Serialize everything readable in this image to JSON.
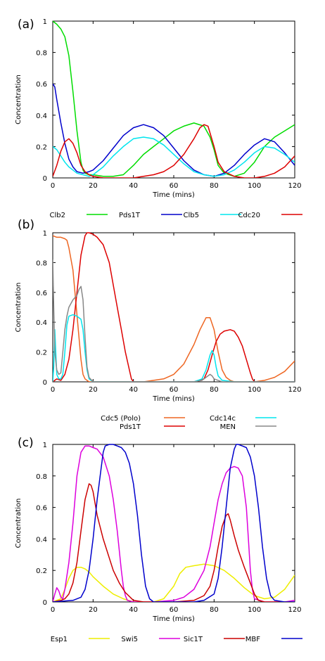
{
  "chart_data": [
    {
      "type": "line",
      "panel_label": "(a)",
      "xlabel": "Time (mins)",
      "ylabel": "Concentration",
      "xlim": [
        0,
        120
      ],
      "ylim": [
        0,
        1
      ],
      "xticks": [
        0,
        20,
        40,
        60,
        80,
        100,
        120
      ],
      "yticks": [
        0,
        0.2,
        0.4,
        0.6,
        0.8,
        1
      ],
      "ytick_labels": [
        "0",
        "0.2",
        "0.4",
        "0.6",
        "0.8",
        "1"
      ],
      "legend_placement": "bottom",
      "legend_rows": [
        [
          "Clb2",
          "Pds1T",
          "Clb5",
          "Cdc20"
        ]
      ],
      "series": [
        {
          "name": "Clb2",
          "color": "#00dd00",
          "x": [
            0,
            2,
            4,
            6,
            8,
            10,
            12,
            14,
            15,
            16,
            18,
            20,
            25,
            30,
            35,
            40,
            45,
            50,
            55,
            60,
            65,
            70,
            75,
            78,
            80,
            82,
            85,
            90,
            95,
            100,
            105,
            110,
            115,
            120
          ],
          "y": [
            1,
            0.98,
            0.95,
            0.9,
            0.78,
            0.55,
            0.3,
            0.1,
            0.05,
            0.03,
            0.02,
            0.02,
            0.01,
            0.01,
            0.02,
            0.08,
            0.15,
            0.2,
            0.25,
            0.3,
            0.33,
            0.35,
            0.33,
            0.26,
            0.18,
            0.08,
            0.03,
            0.01,
            0.03,
            0.1,
            0.2,
            0.26,
            0.3,
            0.34
          ]
        },
        {
          "name": "Pds1T",
          "color": "#0000cc",
          "x": [
            0,
            1,
            2,
            4,
            6,
            8,
            10,
            12,
            15,
            18,
            20,
            25,
            30,
            35,
            40,
            45,
            50,
            55,
            60,
            65,
            70,
            75,
            80,
            85,
            90,
            95,
            100,
            105,
            110,
            115,
            120
          ],
          "y": [
            0.6,
            0.58,
            0.5,
            0.35,
            0.22,
            0.12,
            0.07,
            0.04,
            0.03,
            0.04,
            0.05,
            0.11,
            0.19,
            0.27,
            0.32,
            0.34,
            0.32,
            0.27,
            0.19,
            0.11,
            0.05,
            0.02,
            0.01,
            0.03,
            0.08,
            0.15,
            0.21,
            0.25,
            0.23,
            0.16,
            0.08
          ]
        },
        {
          "name": "Clb5",
          "color": "#00e5ee",
          "x": [
            0,
            2,
            4,
            6,
            8,
            10,
            12,
            15,
            18,
            20,
            25,
            30,
            35,
            40,
            45,
            50,
            55,
            60,
            65,
            70,
            75,
            80,
            85,
            90,
            95,
            100,
            105,
            110,
            115,
            120
          ],
          "y": [
            0.2,
            0.18,
            0.14,
            0.1,
            0.07,
            0.05,
            0.03,
            0.02,
            0.01,
            0.02,
            0.07,
            0.14,
            0.2,
            0.25,
            0.26,
            0.25,
            0.21,
            0.15,
            0.09,
            0.04,
            0.02,
            0.01,
            0.02,
            0.05,
            0.1,
            0.16,
            0.2,
            0.19,
            0.15,
            0.1
          ]
        },
        {
          "name": "Cdc20",
          "color": "#dd0000",
          "x": [
            0,
            2,
            4,
            6,
            8,
            10,
            12,
            14,
            16,
            18,
            20,
            25,
            30,
            35,
            40,
            45,
            50,
            55,
            60,
            65,
            70,
            73,
            75,
            77,
            80,
            82,
            85,
            90,
            95,
            100,
            105,
            110,
            115,
            120
          ],
          "y": [
            0.01,
            0.08,
            0.17,
            0.23,
            0.25,
            0.22,
            0.16,
            0.08,
            0.04,
            0.02,
            0.01,
            0.0,
            0.0,
            0.0,
            0.0,
            0.01,
            0.02,
            0.04,
            0.08,
            0.15,
            0.25,
            0.32,
            0.34,
            0.33,
            0.2,
            0.1,
            0.04,
            0.01,
            0.0,
            0.0,
            0.01,
            0.03,
            0.07,
            0.14
          ]
        }
      ]
    },
    {
      "type": "line",
      "panel_label": "(b)",
      "xlabel": "Time (mins)",
      "ylabel": "Concentration",
      "xlim": [
        0,
        120
      ],
      "ylim": [
        0,
        1
      ],
      "xticks": [
        0,
        20,
        40,
        60,
        80,
        100,
        120
      ],
      "yticks": [
        0,
        0.2,
        0.4,
        0.6,
        0.8,
        1
      ],
      "ytick_labels": [
        "0",
        "0.2",
        "0.4",
        "0.6",
        "0.8",
        "1"
      ],
      "legend_placement": "bottom",
      "legend_rows": [
        [
          "Cdc5 (Polo)",
          "Cdc14c"
        ],
        [
          "Pds1T",
          "MEN"
        ]
      ],
      "series": [
        {
          "name": "Cdc5 (Polo)",
          "color": "#ee6622",
          "x": [
            0,
            2,
            4,
            6,
            7,
            8,
            10,
            12,
            14,
            15,
            16,
            18,
            20,
            25,
            30,
            35,
            40,
            45,
            50,
            55,
            60,
            65,
            70,
            73,
            76,
            78,
            80,
            82,
            84,
            86,
            88,
            90,
            95,
            100,
            105,
            110,
            115,
            120
          ],
          "y": [
            0.98,
            0.97,
            0.97,
            0.96,
            0.95,
            0.9,
            0.75,
            0.45,
            0.15,
            0.05,
            0.02,
            0.0,
            0.0,
            0.0,
            0.0,
            0.0,
            0.0,
            0.0,
            0.01,
            0.02,
            0.05,
            0.12,
            0.25,
            0.35,
            0.43,
            0.43,
            0.35,
            0.2,
            0.08,
            0.03,
            0.01,
            0.0,
            0.0,
            0.0,
            0.01,
            0.03,
            0.07,
            0.14
          ]
        },
        {
          "name": "Pds1T",
          "color": "#dd0000",
          "x": [
            0,
            1,
            2,
            4,
            6,
            8,
            10,
            12,
            14,
            16,
            17,
            18,
            20,
            22,
            25,
            28,
            30,
            32,
            34,
            36,
            38,
            39,
            40,
            45,
            50,
            60,
            70,
            75,
            77,
            79,
            81,
            83,
            85,
            88,
            90,
            92,
            94,
            96,
            98,
            99,
            100,
            105,
            110,
            115,
            120
          ],
          "y": [
            0.0,
            0.01,
            0.02,
            0.01,
            0.05,
            0.15,
            0.35,
            0.6,
            0.85,
            0.98,
            1.0,
            1.0,
            0.99,
            0.97,
            0.92,
            0.8,
            0.65,
            0.5,
            0.35,
            0.2,
            0.08,
            0.02,
            0.0,
            0.0,
            0.0,
            0.0,
            0.0,
            0.02,
            0.08,
            0.18,
            0.27,
            0.32,
            0.34,
            0.35,
            0.34,
            0.3,
            0.24,
            0.15,
            0.06,
            0.02,
            0.0,
            0.0,
            0.0,
            0.0,
            0.0
          ]
        },
        {
          "name": "Cdc14c",
          "color": "#00e5ee",
          "x": [
            0,
            0.5,
            1,
            1.5,
            2,
            3,
            4,
            5,
            6,
            7,
            8,
            10,
            12,
            14,
            15,
            16,
            17,
            18,
            20,
            25,
            30,
            40,
            60,
            70,
            74,
            76,
            78,
            79,
            80,
            81,
            82,
            84,
            90,
            100,
            120
          ],
          "y": [
            0.0,
            0.1,
            0.35,
            0.2,
            0.05,
            0.02,
            0.02,
            0.05,
            0.2,
            0.38,
            0.44,
            0.45,
            0.44,
            0.42,
            0.35,
            0.2,
            0.08,
            0.02,
            0.0,
            0.0,
            0.0,
            0.0,
            0.0,
            0.0,
            0.02,
            0.08,
            0.18,
            0.21,
            0.18,
            0.1,
            0.04,
            0.01,
            0.0,
            0.0,
            0.0
          ]
        },
        {
          "name": "MEN",
          "color": "#888888",
          "x": [
            0,
            0.5,
            1,
            2,
            3,
            4,
            5,
            6,
            7,
            8,
            10,
            12,
            13,
            14,
            15,
            16,
            17,
            18,
            20,
            25,
            30,
            40,
            60,
            70,
            74,
            76,
            77,
            78,
            79,
            80,
            82,
            84,
            90,
            100,
            120
          ],
          "y": [
            0.82,
            0.5,
            0.2,
            0.08,
            0.05,
            0.06,
            0.2,
            0.35,
            0.44,
            0.5,
            0.55,
            0.58,
            0.62,
            0.64,
            0.55,
            0.3,
            0.1,
            0.03,
            0.0,
            0.0,
            0.0,
            0.0,
            0.0,
            0.0,
            0.01,
            0.03,
            0.04,
            0.05,
            0.04,
            0.02,
            0.01,
            0.0,
            0.0,
            0.0,
            0.0
          ]
        }
      ]
    },
    {
      "type": "line",
      "panel_label": "(c)",
      "xlabel": "Time (mins)",
      "ylabel": "Concentration",
      "xlim": [
        0,
        120
      ],
      "ylim": [
        0,
        1
      ],
      "xticks": [
        0,
        20,
        40,
        60,
        80,
        100,
        120
      ],
      "yticks": [
        0,
        0.2,
        0.4,
        0.6,
        0.8,
        1
      ],
      "ytick_labels": [
        "0",
        "0.2",
        "0.4",
        "0.6",
        "0.8",
        "1"
      ],
      "legend_placement": "bottom",
      "legend_rows": [
        [
          "Esp1",
          "Swi5",
          "Sic1T",
          "MBF"
        ]
      ],
      "series": [
        {
          "name": "Esp1",
          "color": "#eeee00",
          "x": [
            0,
            4,
            6,
            8,
            10,
            12,
            14,
            16,
            18,
            20,
            25,
            30,
            35,
            40,
            45,
            50,
            55,
            60,
            63,
            66,
            70,
            75,
            80,
            85,
            90,
            95,
            100,
            105,
            110,
            115,
            120
          ],
          "y": [
            0.0,
            0.02,
            0.08,
            0.15,
            0.2,
            0.22,
            0.22,
            0.21,
            0.19,
            0.16,
            0.1,
            0.05,
            0.02,
            0.0,
            0.0,
            0.0,
            0.02,
            0.1,
            0.18,
            0.22,
            0.23,
            0.24,
            0.23,
            0.2,
            0.15,
            0.09,
            0.04,
            0.02,
            0.03,
            0.08,
            0.17
          ]
        },
        {
          "name": "Swi5",
          "color": "#dd00dd",
          "x": [
            0,
            1,
            2,
            3,
            4,
            5,
            6,
            8,
            10,
            12,
            14,
            16,
            18,
            20,
            22,
            25,
            28,
            30,
            32,
            34,
            35,
            36,
            37,
            40,
            50,
            60,
            65,
            70,
            75,
            78,
            80,
            82,
            84,
            86,
            88,
            90,
            92,
            94,
            96,
            97,
            98,
            99,
            100,
            105,
            110,
            115,
            120
          ],
          "y": [
            0.0,
            0.05,
            0.09,
            0.07,
            0.03,
            0.02,
            0.08,
            0.25,
            0.5,
            0.8,
            0.95,
            0.99,
            0.99,
            0.98,
            0.97,
            0.92,
            0.8,
            0.65,
            0.45,
            0.2,
            0.1,
            0.04,
            0.01,
            0.0,
            0.0,
            0.01,
            0.03,
            0.08,
            0.2,
            0.35,
            0.5,
            0.65,
            0.75,
            0.82,
            0.85,
            0.86,
            0.85,
            0.8,
            0.6,
            0.4,
            0.2,
            0.08,
            0.02,
            0.0,
            0.0,
            0.0,
            0.01
          ]
        },
        {
          "name": "Sic1T",
          "color": "#cc0000",
          "x": [
            0,
            4,
            6,
            8,
            10,
            12,
            14,
            16,
            18,
            19,
            20,
            22,
            25,
            28,
            30,
            33,
            36,
            40,
            45,
            50,
            60,
            70,
            75,
            78,
            80,
            82,
            84,
            86,
            87,
            88,
            90,
            92,
            95,
            98,
            100,
            102,
            105,
            110,
            120
          ],
          "y": [
            0.0,
            0.01,
            0.02,
            0.05,
            0.12,
            0.25,
            0.45,
            0.65,
            0.75,
            0.74,
            0.7,
            0.55,
            0.4,
            0.28,
            0.2,
            0.12,
            0.06,
            0.01,
            0.0,
            0.0,
            0.0,
            0.01,
            0.04,
            0.1,
            0.2,
            0.35,
            0.48,
            0.55,
            0.56,
            0.52,
            0.42,
            0.33,
            0.22,
            0.12,
            0.05,
            0.01,
            0.0,
            0.0,
            0.0
          ]
        },
        {
          "name": "MBF",
          "color": "#0000cc",
          "x": [
            0,
            10,
            14,
            16,
            18,
            20,
            22,
            24,
            25,
            26,
            28,
            30,
            32,
            34,
            36,
            38,
            40,
            42,
            44,
            46,
            48,
            50,
            60,
            70,
            75,
            80,
            82,
            84,
            86,
            88,
            90,
            91,
            92,
            94,
            96,
            98,
            100,
            102,
            104,
            106,
            108,
            110,
            115,
            120
          ],
          "y": [
            0.0,
            0.01,
            0.03,
            0.08,
            0.2,
            0.4,
            0.65,
            0.85,
            0.95,
            0.99,
            1.0,
            1.0,
            0.99,
            0.98,
            0.95,
            0.88,
            0.75,
            0.55,
            0.3,
            0.1,
            0.02,
            0.0,
            0.0,
            0.0,
            0.01,
            0.05,
            0.15,
            0.35,
            0.6,
            0.85,
            0.97,
            1.0,
            1.0,
            0.99,
            0.98,
            0.92,
            0.8,
            0.6,
            0.35,
            0.15,
            0.04,
            0.01,
            0.0,
            0.0
          ]
        }
      ]
    }
  ]
}
